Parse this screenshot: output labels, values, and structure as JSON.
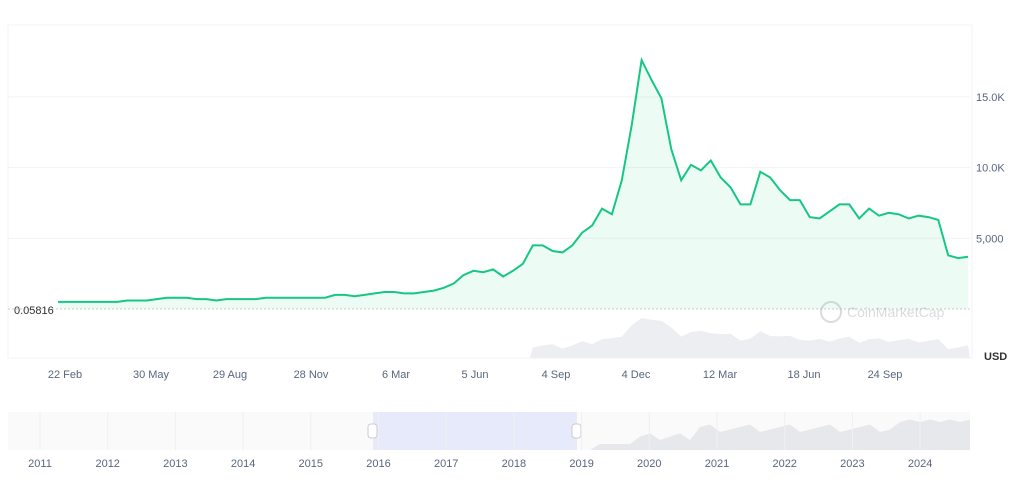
{
  "chart_data": {
    "type": "area",
    "title": "",
    "xlabel": "",
    "ylabel": "",
    "currency_label": "USD",
    "watermark": "CoinMarketCap",
    "min_marker_label": "0.05816",
    "ylim": [
      0,
      19500
    ],
    "y_ticks": [
      {
        "value": 5000,
        "label": "5,000"
      },
      {
        "value": 10000,
        "label": "10.0K"
      },
      {
        "value": 15000,
        "label": "15.0K"
      }
    ],
    "x_tick_labels": [
      "22 Feb",
      "30 May",
      "29 Aug",
      "28 Nov",
      "6 Mar",
      "5 Jun",
      "4 Sep",
      "4 Dec",
      "12 Mar",
      "18 Jun",
      "24 Sep"
    ],
    "navigator_years": [
      "2011",
      "2012",
      "2013",
      "2014",
      "2015",
      "2016",
      "2017",
      "2018",
      "2019",
      "2020",
      "2021",
      "2022",
      "2023",
      "2024"
    ],
    "navigator_selection_years": [
      "2016",
      "2019"
    ],
    "grid": true,
    "line_color": "#16c784",
    "series": [
      {
        "values": [
          500,
          500,
          500,
          500,
          500,
          500,
          500,
          600,
          600,
          600,
          700,
          800,
          800,
          800,
          700,
          700,
          600,
          700,
          700,
          700,
          700,
          800,
          800,
          800,
          800,
          800,
          800,
          800,
          1000,
          1000,
          900,
          1000,
          1100,
          1200,
          1200,
          1100,
          1100,
          1200,
          1300,
          1500,
          1800,
          2400,
          2700,
          2600,
          2800,
          2300,
          2700,
          3200,
          4500,
          4500,
          4100,
          4000,
          4500,
          5400,
          5900,
          7100,
          6700,
          9100,
          13000,
          17600,
          16200,
          14900,
          11300,
          9100,
          10200,
          9800,
          10500,
          9300,
          8600,
          7400,
          7400,
          9700,
          9300,
          8400,
          7700,
          7700,
          6500,
          6400,
          6900,
          7400,
          7400,
          6400,
          7100,
          6600,
          6800,
          6700,
          6400,
          6600,
          6500,
          6300,
          3800,
          3600,
          3700
        ]
      }
    ]
  }
}
